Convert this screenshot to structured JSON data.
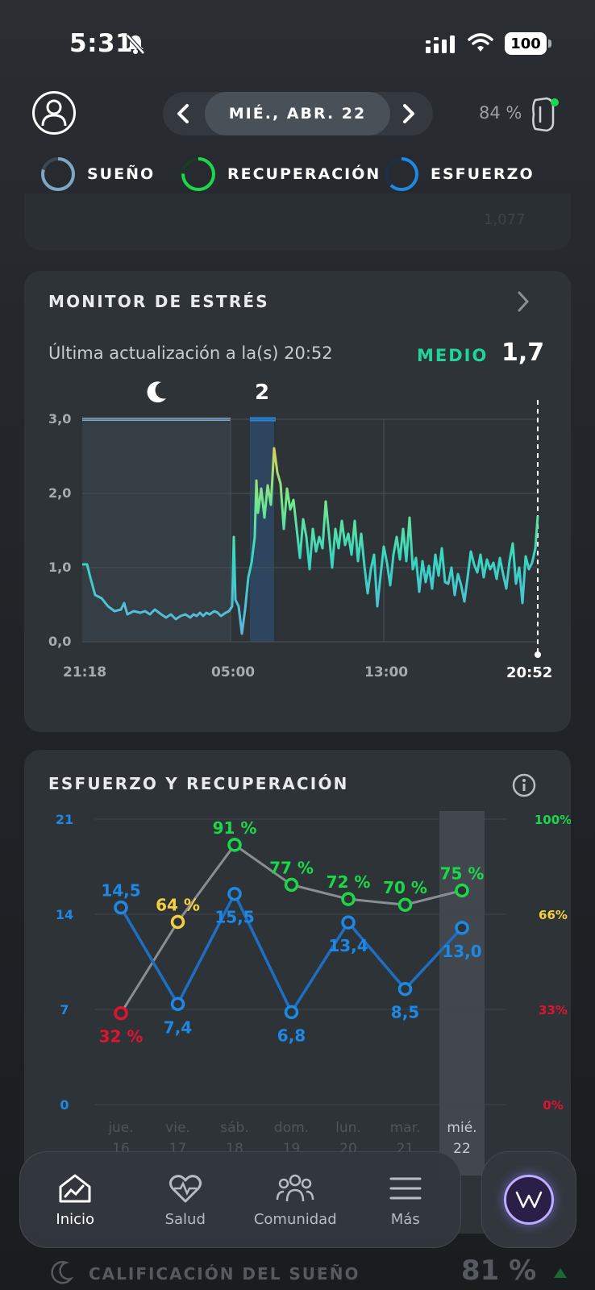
{
  "status_bar": {
    "time": "5:31",
    "battery": "100"
  },
  "header": {
    "date": "MIÉ., ABR. 22",
    "device_battery": "84 %"
  },
  "rings": [
    {
      "label": "SUEÑO",
      "color": "#7fa6c4"
    },
    {
      "label": "RECUPERACIÓN",
      "color": "#1ad84a"
    },
    {
      "label": "ESFUERZO",
      "color": "#1e88e5"
    }
  ],
  "prev_card_value": "1,077",
  "stress": {
    "title": "MONITOR DE ESTRÉS",
    "updated": "Última actualización a la(s) 20:52",
    "level": "MEDIO",
    "level_color": "#1fd69a",
    "value": "1,7",
    "marker": "2",
    "chart_data": {
      "type": "line",
      "y_ticks": [
        "3,0",
        "2,0",
        "1,0",
        "0,0"
      ],
      "x_ticks": [
        "21:18",
        "05:00",
        "13:00",
        "20:52"
      ],
      "ylim": [
        0,
        3
      ]
    }
  },
  "effort": {
    "title": "ESFUERZO Y RECUPERACIÓN",
    "chart_data": {
      "type": "line",
      "categories": [
        {
          "day": "jue.",
          "num": "16"
        },
        {
          "day": "vie.",
          "num": "17"
        },
        {
          "day": "sáb.",
          "num": "18"
        },
        {
          "day": "dom.",
          "num": "19"
        },
        {
          "day": "lun.",
          "num": "20"
        },
        {
          "day": "mar.",
          "num": "21"
        },
        {
          "day": "mié.",
          "num": "22"
        }
      ],
      "left_ticks": [
        "21",
        "14",
        "7",
        "0"
      ],
      "right_ticks": [
        "100%",
        "66%",
        "33%",
        "0%"
      ],
      "strain": {
        "values": [
          14.5,
          7.4,
          15.5,
          6.8,
          13.4,
          8.5,
          13.0
        ],
        "labels": [
          "14,5",
          "7,4",
          "15,5",
          "6,8",
          "13,4",
          "8,5",
          "13,0"
        ],
        "ylim": [
          0,
          21
        ]
      },
      "recovery": {
        "values": [
          32,
          64,
          91,
          77,
          72,
          70,
          75
        ],
        "labels": [
          "32 %",
          "64 %",
          "91 %",
          "77 %",
          "72 %",
          "70 %",
          "75 %"
        ],
        "ylim": [
          0,
          100
        ]
      }
    }
  },
  "nav": {
    "items": [
      "Inicio",
      "Salud",
      "Comunidad",
      "Más"
    ]
  },
  "sleep_row": {
    "label": "CALIFICACIÓN DEL SUEÑO",
    "score": "81 %"
  }
}
